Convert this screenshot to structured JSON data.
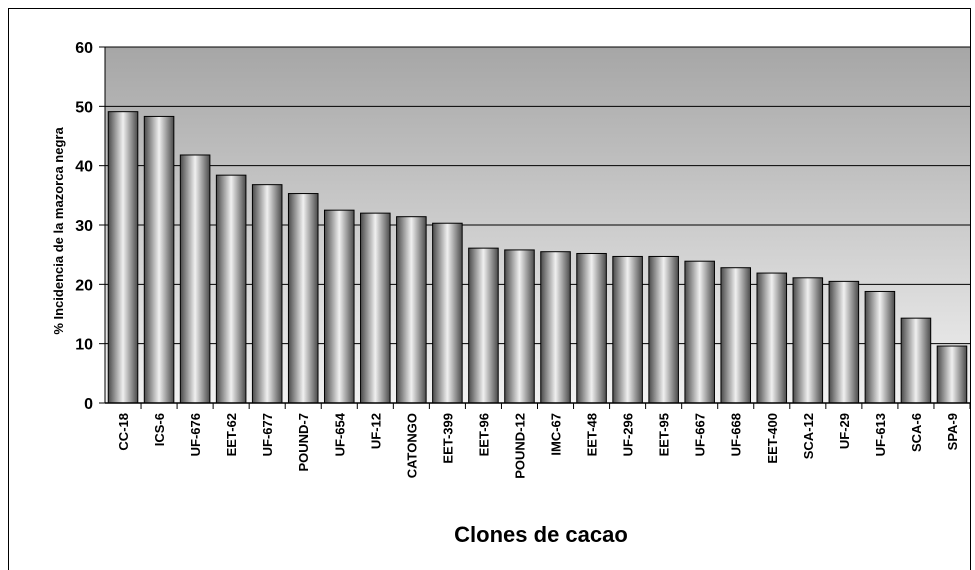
{
  "chart_data": {
    "type": "bar",
    "title": "",
    "xlabel": "Clones de cacao",
    "ylabel": "% Incidencia de la mazorca negra",
    "ylim": [
      0,
      60
    ],
    "yticks": [
      0,
      10,
      20,
      30,
      40,
      50,
      60
    ],
    "grid": true,
    "legend": "none",
    "categories": [
      "CC-18",
      "ICS-6",
      "UF-676",
      "EET-62",
      "UF-677",
      "POUND-7",
      "UF-654",
      "UF-12",
      "CATONGO",
      "EET-399",
      "EET-96",
      "POUND-12",
      "IMC-67",
      "EET-48",
      "UF-296",
      "EET-95",
      "UF-667",
      "UF-668",
      "EET-400",
      "SCA-12",
      "UF-29",
      "UF-613",
      "SCA-6",
      "SPA-9"
    ],
    "values": [
      49.1,
      48.3,
      41.8,
      38.4,
      36.8,
      35.3,
      32.5,
      32.0,
      31.4,
      30.3,
      26.1,
      25.8,
      25.5,
      25.2,
      24.7,
      24.7,
      23.9,
      22.8,
      21.9,
      21.1,
      20.5,
      18.8,
      14.3,
      9.6
    ],
    "colors": {
      "plot_bg_top": "#a6a6a6",
      "plot_bg_bottom": "#f2f2f2",
      "bar_dark": "#4a4a4a",
      "bar_light": "#f0f0f0",
      "gridline": "#000000"
    }
  }
}
